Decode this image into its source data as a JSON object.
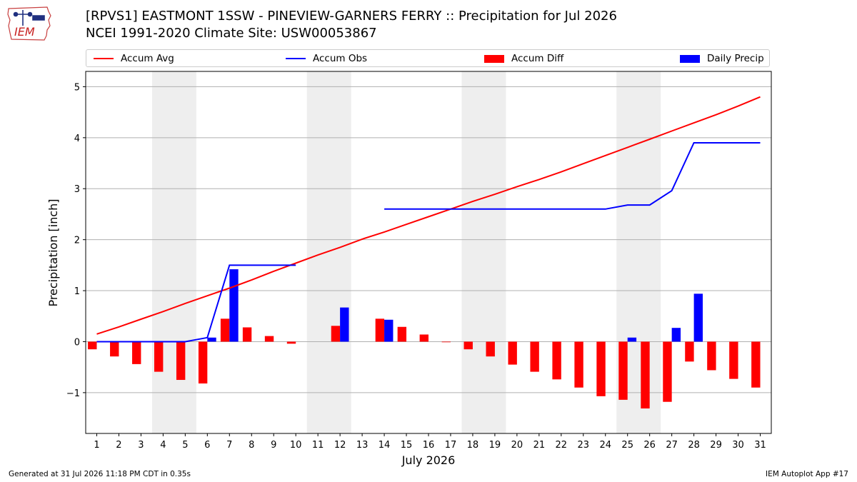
{
  "header": {
    "title_line1": "[RPVS1] EASTMONT 1SSW - PINEVIEW-GARNERS FERRY :: Precipitation for Jul 2026",
    "title_line2": "NCEI 1991-2020 Climate Site: USW00053867"
  },
  "logo": {
    "text": "IEM"
  },
  "footer": {
    "generated": "Generated at 31 Jul 2026 11:18 PM CDT in 0.35s",
    "app": "IEM Autoplot App #17"
  },
  "colors": {
    "accum_avg": "#ff0000",
    "accum_obs": "#0000ff",
    "accum_diff": "#ff0000",
    "daily_precip": "#0000ff",
    "weekend_shade": "#eeeeee",
    "grid": "#b0b0b0"
  },
  "legend": {
    "placement": "top, above plot, 4 columns",
    "items": [
      {
        "label": "Accum Avg",
        "kind": "line",
        "color": "#ff0000"
      },
      {
        "label": "Accum Obs",
        "kind": "line",
        "color": "#0000ff"
      },
      {
        "label": "Accum Diff",
        "kind": "patch",
        "color": "#ff0000"
      },
      {
        "label": "Daily Precip",
        "kind": "patch",
        "color": "#0000ff"
      }
    ]
  },
  "chart_data": {
    "type": "bar",
    "xlabel": "July 2026",
    "ylabel": "Precipitation [inch]",
    "xlim": [
      0.5,
      31.5
    ],
    "ylim": [
      -1.8,
      5.3
    ],
    "yticks": [
      -1,
      0,
      1,
      2,
      3,
      4,
      5
    ],
    "ytick_labels": [
      "−1",
      "0",
      "1",
      "2",
      "3",
      "4",
      "5"
    ],
    "grid": "horizontal",
    "x": [
      1,
      2,
      3,
      4,
      5,
      6,
      7,
      8,
      9,
      10,
      11,
      12,
      13,
      14,
      15,
      16,
      17,
      18,
      19,
      20,
      21,
      22,
      23,
      24,
      25,
      26,
      27,
      28,
      29,
      30,
      31
    ],
    "weekend_shading": [
      [
        3.5,
        5.5
      ],
      [
        10.5,
        12.5
      ],
      [
        17.5,
        19.5
      ],
      [
        24.5,
        26.5
      ]
    ],
    "series": [
      {
        "name": "Accum Avg",
        "type": "line",
        "color": "#ff0000",
        "values": [
          0.15,
          0.29,
          0.44,
          0.59,
          0.75,
          0.9,
          1.05,
          1.21,
          1.38,
          1.54,
          1.7,
          1.85,
          2.01,
          2.15,
          2.3,
          2.45,
          2.6,
          2.75,
          2.89,
          3.04,
          3.18,
          3.33,
          3.49,
          3.65,
          3.81,
          3.97,
          4.13,
          4.29,
          4.45,
          4.62,
          4.8
        ]
      },
      {
        "name": "Accum Obs",
        "type": "line",
        "color": "#0000ff",
        "values": [
          0.0,
          0.0,
          0.0,
          0.0,
          0.0,
          0.08,
          1.5,
          1.5,
          1.5,
          1.5,
          null,
          null,
          null,
          2.6,
          2.6,
          2.6,
          2.6,
          2.6,
          2.6,
          2.6,
          2.6,
          2.6,
          2.6,
          2.6,
          2.68,
          2.68,
          2.96,
          3.9,
          3.9,
          3.9,
          3.9
        ]
      },
      {
        "name": "Accum Diff",
        "type": "bar",
        "color": "#ff0000",
        "values": [
          -0.15,
          -0.29,
          -0.44,
          -0.59,
          -0.75,
          -0.82,
          0.45,
          0.28,
          0.11,
          -0.04,
          null,
          0.31,
          null,
          0.45,
          0.29,
          0.14,
          -0.01,
          -0.15,
          -0.29,
          -0.45,
          -0.59,
          -0.74,
          -0.9,
          -1.07,
          -1.14,
          -1.31,
          -1.18,
          -0.39,
          -0.56,
          -0.73,
          -0.9
        ]
      },
      {
        "name": "Daily Precip",
        "type": "bar",
        "color": "#0000ff",
        "values": [
          0,
          0,
          0,
          0,
          0,
          0.08,
          1.42,
          0,
          0,
          0,
          0,
          0.67,
          0,
          0.43,
          0,
          0,
          0,
          0,
          0,
          0,
          0,
          0,
          0,
          0,
          0.08,
          0,
          0.27,
          0.94,
          0,
          0,
          0
        ]
      }
    ]
  }
}
